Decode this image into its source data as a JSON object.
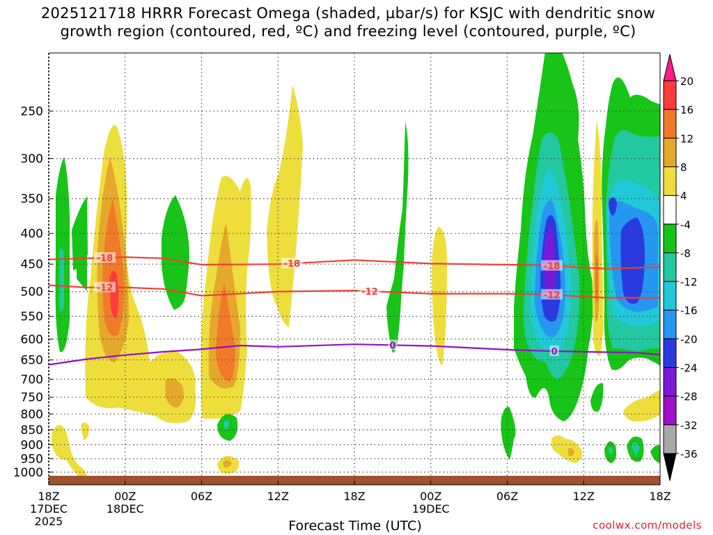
{
  "title": "2025121718 HRRR Forecast Omega (shaded, µbar/s) for KSJC with dendritic snow\ngrowth region (contoured, red, ºC) and freezing level (contoured, purple, ºC)",
  "credit": "coolwx.com/models",
  "colors": {
    "dgz": "#ee4035",
    "freezing": "#9010c8",
    "ground": "#a0522d",
    "grid": "#444444"
  },
  "chart_data": {
    "type": "heatmap",
    "title": "2025121718 HRRR Forecast Omega (shaded, µbar/s) for KSJC with dendritic snow growth region (contoured, red, ºC) and freezing level (contoured, purple, ºC)",
    "xlabel": "Forecast Time (UTC)",
    "ylabel": "",
    "units": "µbar/s",
    "x_range_hours": [
      0,
      48
    ],
    "x_ticks": [
      {
        "hour": 0,
        "label": "18Z",
        "sub": "17DEC",
        "sub2": "2025"
      },
      {
        "hour": 6,
        "label": "00Z",
        "sub": "18DEC",
        "sub2": ""
      },
      {
        "hour": 12,
        "label": "06Z",
        "sub": "",
        "sub2": ""
      },
      {
        "hour": 18,
        "label": "12Z",
        "sub": "",
        "sub2": ""
      },
      {
        "hour": 24,
        "label": "18Z",
        "sub": "",
        "sub2": ""
      },
      {
        "hour": 30,
        "label": "00Z",
        "sub": "19DEC",
        "sub2": ""
      },
      {
        "hour": 36,
        "label": "06Z",
        "sub": "",
        "sub2": ""
      },
      {
        "hour": 42,
        "label": "12Z",
        "sub": "",
        "sub2": ""
      },
      {
        "hour": 48,
        "label": "18Z",
        "sub": "",
        "sub2": ""
      }
    ],
    "y_range_hpa": [
      1050,
      200
    ],
    "y_ticks": [
      250,
      300,
      350,
      400,
      450,
      500,
      550,
      600,
      650,
      700,
      750,
      800,
      850,
      900,
      950,
      1000
    ],
    "colorbar": {
      "labels": [
        "20",
        "16",
        "12",
        "8",
        "4",
        "-4",
        "-8",
        "-12",
        "-16",
        "-20",
        "-24",
        "-28",
        "-32",
        "-36"
      ],
      "colors": [
        "#ff1a88",
        "#ff3b3b",
        "#f07a2a",
        "#e6a82c",
        "#eede3c",
        "#ffffff",
        "#17c417",
        "#22c8a0",
        "#20c8d8",
        "#2696f0",
        "#2a3ae0",
        "#7a18d8",
        "#a010c8",
        "#a8a8a8",
        "#000000"
      ]
    },
    "series": [
      {
        "name": "dendritic growth -18C",
        "label": "-18",
        "points": [
          [
            0,
            442
          ],
          [
            3,
            440
          ],
          [
            6,
            438
          ],
          [
            9,
            440
          ],
          [
            12,
            451
          ],
          [
            18,
            450
          ],
          [
            24,
            443
          ],
          [
            30,
            449
          ],
          [
            36,
            451
          ],
          [
            39,
            452
          ],
          [
            42,
            456
          ],
          [
            44,
            458
          ],
          [
            48,
            455
          ]
        ],
        "label_hours": [
          4.4,
          19.1,
          39.5
        ]
      },
      {
        "name": "dendritic growth -12C",
        "label": "-12",
        "points": [
          [
            0,
            488
          ],
          [
            3,
            492
          ],
          [
            6,
            492
          ],
          [
            9,
            495
          ],
          [
            12,
            508
          ],
          [
            18,
            500
          ],
          [
            24,
            498
          ],
          [
            30,
            504
          ],
          [
            36,
            504
          ],
          [
            39,
            505
          ],
          [
            42,
            510
          ],
          [
            44,
            512
          ],
          [
            48,
            512
          ]
        ],
        "label_hours": [
          4.4,
          25.2,
          39.5
        ]
      },
      {
        "name": "freezing level 0C",
        "label": "0",
        "points": [
          [
            0,
            662
          ],
          [
            3,
            648
          ],
          [
            6,
            638
          ],
          [
            9,
            630
          ],
          [
            12,
            624
          ],
          [
            15,
            615
          ],
          [
            18,
            618
          ],
          [
            24,
            612
          ],
          [
            30,
            616
          ],
          [
            36,
            625
          ],
          [
            39,
            628
          ],
          [
            42,
            630
          ],
          [
            46,
            632
          ],
          [
            48,
            637
          ]
        ],
        "label_hours": [
          27.0,
          39.7
        ]
      }
    ]
  }
}
